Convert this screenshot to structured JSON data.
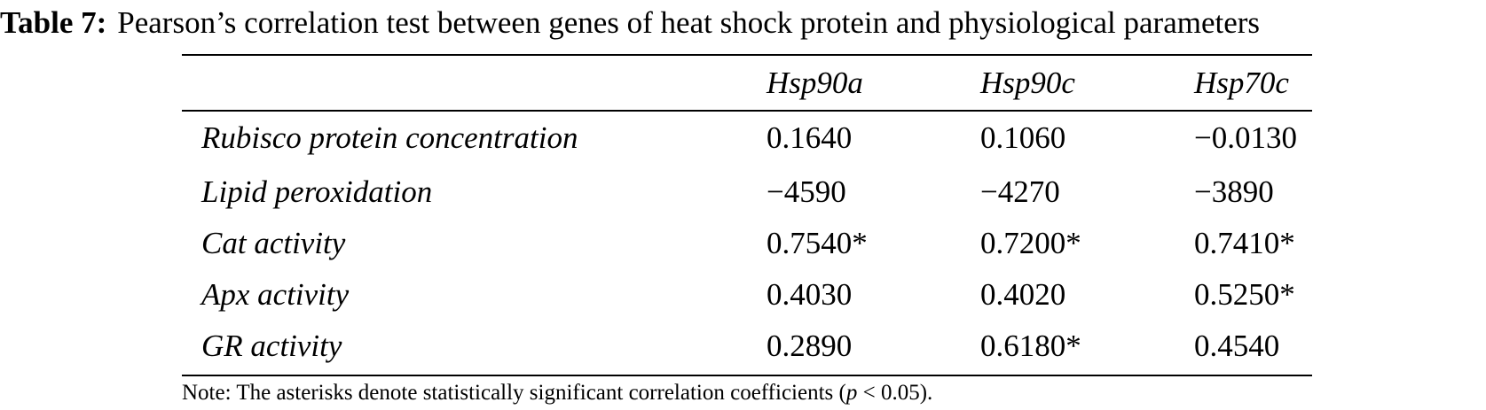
{
  "caption": {
    "label": "Table 7:",
    "text": "Pearson’s correlation test between genes of heat shock protein and physiological parameters"
  },
  "table": {
    "columns": [
      "",
      "Hsp90a",
      "Hsp90c",
      "Hsp70c"
    ],
    "rows": [
      {
        "label": "Rubisco protein concentration",
        "values": [
          "0.1640",
          "0.1060",
          "−0.0130"
        ]
      },
      {
        "label": "Lipid peroxidation",
        "values": [
          "−4590",
          "−4270",
          "−3890"
        ]
      },
      {
        "label": "Cat activity",
        "values": [
          "0.7540*",
          "0.7200*",
          "0.7410*"
        ]
      },
      {
        "label": "Apx activity",
        "values": [
          "0.4030",
          "0.4020",
          "0.5250*"
        ]
      },
      {
        "label": "GR activity",
        "values": [
          "0.2890",
          "0.6180*",
          "0.4540"
        ]
      }
    ]
  },
  "note": {
    "prefix": "Note: The asterisks denote statistically significant correlation coefficients (",
    "p": "p",
    "suffix": " < 0.05)."
  }
}
